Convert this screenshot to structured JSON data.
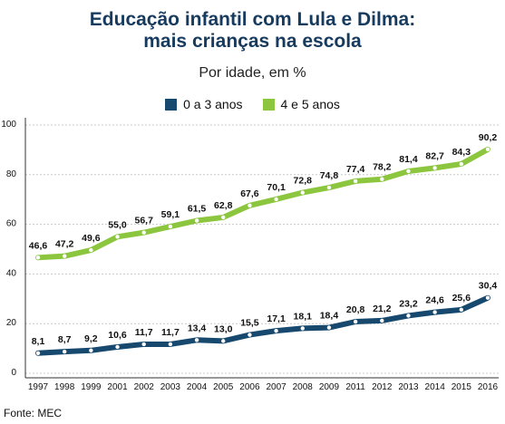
{
  "title_line1": "Educação infantil com Lula e Dilma:",
  "title_line2": "mais crianças na escola",
  "subtitle": "Por idade, em %",
  "source": "Fonte: MEC",
  "chart_data": {
    "type": "line",
    "x": [
      "1997",
      "1998",
      "1999",
      "2001",
      "2002",
      "2003",
      "2004",
      "2005",
      "2006",
      "2007",
      "2008",
      "2009",
      "2011",
      "2012",
      "2013",
      "2014",
      "2015",
      "2016"
    ],
    "series": [
      {
        "name": "0 a 3 anos",
        "color": "#17486e",
        "values": [
          8.1,
          8.7,
          9.2,
          10.6,
          11.7,
          11.7,
          13.4,
          13.0,
          15.5,
          17.1,
          18.1,
          18.4,
          20.8,
          21.2,
          23.2,
          24.6,
          25.6,
          30.4
        ],
        "labels": [
          "8,1",
          "8,7",
          "9,2",
          "10,6",
          "11,7",
          "11,7",
          "13,4",
          "13,0",
          "15,5",
          "17,1",
          "18,1",
          "18,4",
          "20,8",
          "21,2",
          "23,2",
          "24,6",
          "25,6",
          "30,4"
        ]
      },
      {
        "name": "4 e 5 anos",
        "color": "#8cc63f",
        "values": [
          46.6,
          47.2,
          49.6,
          55.0,
          56.7,
          59.1,
          61.5,
          62.8,
          67.6,
          70.1,
          72.8,
          74.8,
          77.4,
          78.2,
          81.4,
          82.7,
          84.3,
          90.2
        ],
        "labels": [
          "46,6",
          "47,2",
          "49,6",
          "55,0",
          "56,7",
          "59,1",
          "61,5",
          "62,8",
          "67,6",
          "70,1",
          "72,8",
          "74,8",
          "77,4",
          "78,2",
          "81,4",
          "82,7",
          "84,3",
          "90,2"
        ]
      }
    ],
    "ylim": [
      0,
      100
    ],
    "yticks": [
      "0",
      "20",
      "40",
      "60",
      "80",
      "100"
    ],
    "grid": true,
    "legend_position": "top-center"
  }
}
